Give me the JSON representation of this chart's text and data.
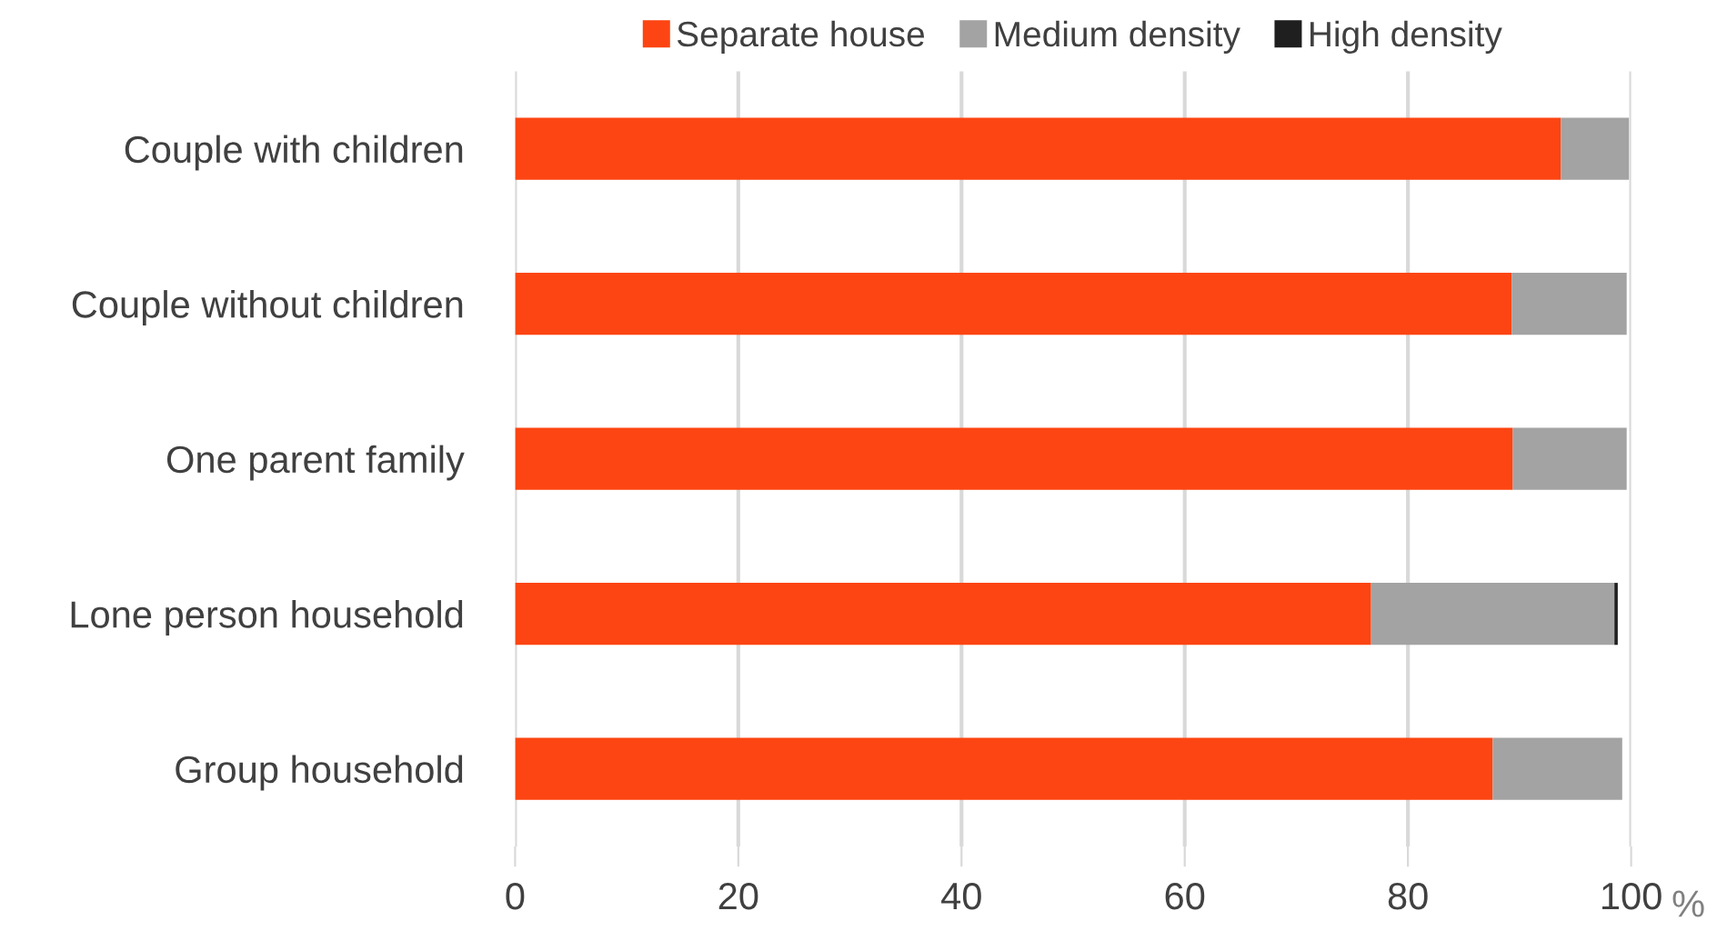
{
  "chart_data": {
    "type": "bar",
    "orientation": "horizontal",
    "stacked": true,
    "xlabel": "%",
    "categories": [
      "Couple with children",
      "Couple without children",
      "One parent family",
      "Lone person household",
      "Group household"
    ],
    "series": [
      {
        "name": "Separate house",
        "color": "#fc4512",
        "values": [
          93.7,
          89.3,
          89.4,
          76.7,
          87.6
        ]
      },
      {
        "name": "Medium density",
        "color": "#a3a3a3",
        "values": [
          6.1,
          10.3,
          10.2,
          21.8,
          11.6
        ]
      },
      {
        "name": "High density",
        "color": "#1f1f1f",
        "values": [
          0,
          0,
          0,
          0.3,
          0
        ]
      }
    ],
    "xlim": [
      0,
      100
    ],
    "xticks": [
      0,
      20,
      40,
      60,
      80,
      100
    ],
    "grid": "x",
    "legend": "top"
  }
}
